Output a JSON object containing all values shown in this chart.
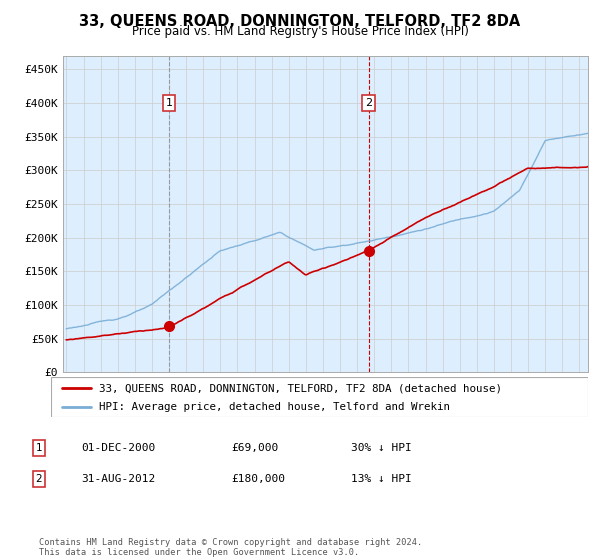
{
  "title": "33, QUEENS ROAD, DONNINGTON, TELFORD, TF2 8DA",
  "subtitle": "Price paid vs. HM Land Registry's House Price Index (HPI)",
  "legend_line1": "33, QUEENS ROAD, DONNINGTON, TELFORD, TF2 8DA (detached house)",
  "legend_line2": "HPI: Average price, detached house, Telford and Wrekin",
  "annotation1_date": "01-DEC-2000",
  "annotation1_price": "£69,000",
  "annotation1_hpi": "30% ↓ HPI",
  "annotation2_date": "31-AUG-2012",
  "annotation2_price": "£180,000",
  "annotation2_hpi": "13% ↓ HPI",
  "footnote": "Contains HM Land Registry data © Crown copyright and database right 2024.\nThis data is licensed under the Open Government Licence v3.0.",
  "sale1_year": 2001.0,
  "sale1_value": 69000,
  "sale2_year": 2012.67,
  "sale2_value": 180000,
  "hpi_color": "#7aaed6",
  "price_color": "#cc0000",
  "sale1_vline_color": "#888888",
  "sale2_vline_color": "#cc0000",
  "background_color": "#ddeeff",
  "ylim": [
    0,
    470000
  ],
  "xlim_start": 1994.8,
  "xlim_end": 2025.5,
  "yticks": [
    0,
    50000,
    100000,
    150000,
    200000,
    250000,
    300000,
    350000,
    400000,
    450000
  ],
  "ytick_labels": [
    "£0",
    "£50K",
    "£100K",
    "£150K",
    "£200K",
    "£250K",
    "£300K",
    "£350K",
    "£400K",
    "£450K"
  ],
  "xticks": [
    1995,
    1996,
    1997,
    1998,
    1999,
    2000,
    2001,
    2002,
    2003,
    2004,
    2005,
    2006,
    2007,
    2008,
    2009,
    2010,
    2011,
    2012,
    2013,
    2014,
    2015,
    2016,
    2017,
    2018,
    2019,
    2020,
    2021,
    2022,
    2023,
    2024,
    2025
  ]
}
